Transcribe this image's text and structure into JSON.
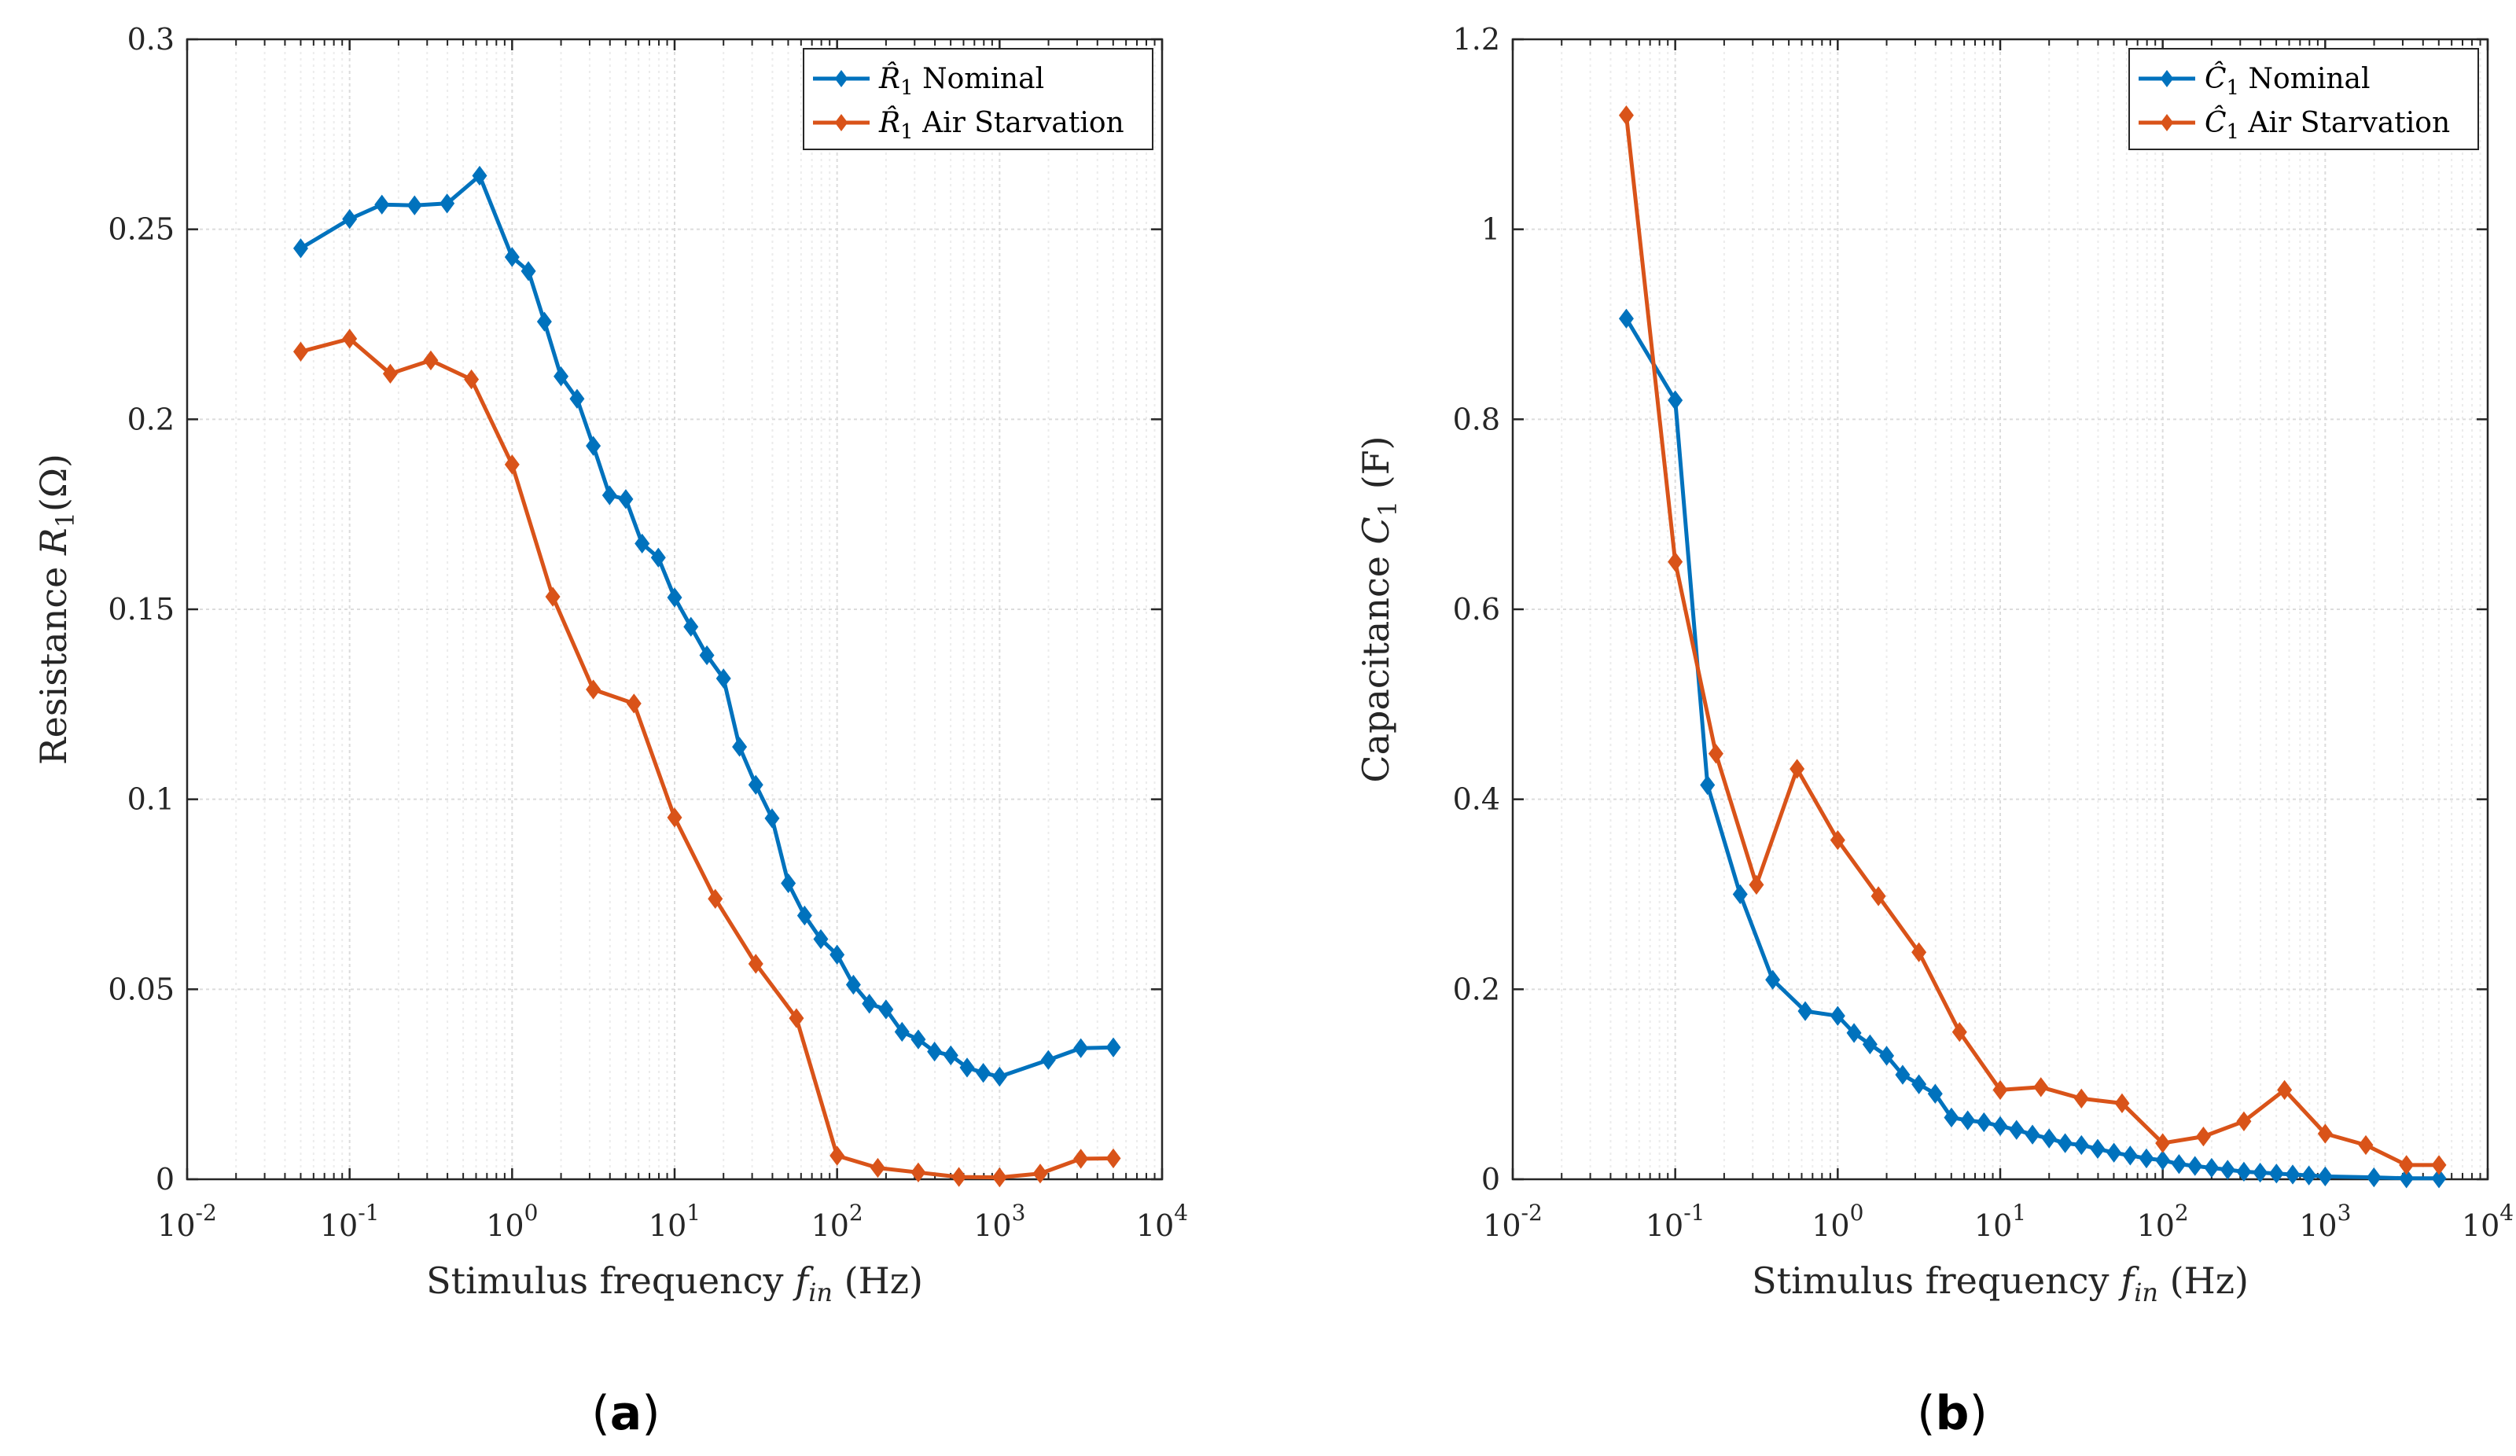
{
  "panels": [
    {
      "label_open": "(",
      "label_letter": "a",
      "label_close": ")"
    },
    {
      "label_open": "(",
      "label_letter": "b",
      "label_close": ")"
    }
  ],
  "chart_data": [
    {
      "type": "line",
      "x_scale": "log",
      "xlim": [
        0.01,
        10000
      ],
      "ylim": [
        0,
        0.3
      ],
      "xlabel": "Stimulus frequency f_in (Hz)",
      "xlabel_main": "Stimulus frequency ",
      "xlabel_var": "f",
      "xlabel_sub": "in",
      "xlabel_unit": " (Hz)",
      "ylabel": "Resistance R1(Ω)",
      "ylabel_main": "Resistance ",
      "ylabel_var": "R",
      "ylabel_sub": "1",
      "ylabel_unit": "(Ω)",
      "x_ticks": [
        {
          "value": 0.01,
          "base": "10",
          "exp": "-2"
        },
        {
          "value": 0.1,
          "base": "10",
          "exp": "-1"
        },
        {
          "value": 1,
          "base": "10",
          "exp": "0"
        },
        {
          "value": 10,
          "base": "10",
          "exp": "1"
        },
        {
          "value": 100,
          "base": "10",
          "exp": "2"
        },
        {
          "value": 1000,
          "base": "10",
          "exp": "3"
        },
        {
          "value": 10000,
          "base": "10",
          "exp": "4"
        }
      ],
      "y_ticks": [
        {
          "value": 0,
          "label": "0"
        },
        {
          "value": 0.05,
          "label": "0.05"
        },
        {
          "value": 0.1,
          "label": "0.1"
        },
        {
          "value": 0.15,
          "label": "0.15"
        },
        {
          "value": 0.2,
          "label": "0.2"
        },
        {
          "value": 0.25,
          "label": "0.25"
        },
        {
          "value": 0.3,
          "label": "0.3"
        }
      ],
      "grid": true,
      "legend_position": "top-right",
      "series": [
        {
          "name": "R̂1 Nominal",
          "legend_var": "R̂",
          "legend_sub": "1",
          "legend_rest": " Nominal",
          "color": "#0072BD",
          "x": [
            0.05,
            0.1,
            0.158,
            0.251,
            0.398,
            0.631,
            1.0,
            1.26,
            1.58,
            2.0,
            2.51,
            3.16,
            3.98,
            5.01,
            6.31,
            7.94,
            10.0,
            12.6,
            15.8,
            20.0,
            25.1,
            31.6,
            39.8,
            50.1,
            63.1,
            79.4,
            100,
            126,
            158,
            200,
            251,
            316,
            398,
            501,
            631,
            794,
            1000,
            1995,
            3162,
            5012
          ],
          "y": [
            0.245,
            0.2527,
            0.2565,
            0.2563,
            0.2568,
            0.2641,
            0.2427,
            0.239,
            0.2257,
            0.2113,
            0.2054,
            0.193,
            0.18,
            0.179,
            0.1673,
            0.1636,
            0.1531,
            0.1454,
            0.1379,
            0.1318,
            0.1138,
            0.1038,
            0.095,
            0.0779,
            0.0694,
            0.0632,
            0.0591,
            0.0512,
            0.0462,
            0.0447,
            0.0388,
            0.0368,
            0.0336,
            0.0326,
            0.0294,
            0.028,
            0.027,
            0.0314,
            0.0345,
            0.0347
          ]
        },
        {
          "name": "R̂1 Air Starvation",
          "legend_var": "R̂",
          "legend_sub": "1",
          "legend_rest": " Air Starvation",
          "color": "#D95319",
          "x": [
            0.05,
            0.1,
            0.178,
            0.316,
            0.562,
            1.0,
            1.78,
            3.16,
            5.62,
            10.0,
            17.8,
            31.6,
            56.2,
            100,
            178,
            316,
            562,
            1000,
            1778,
            3162,
            5012
          ],
          "y": [
            0.2178,
            0.2212,
            0.212,
            0.2155,
            0.2105,
            0.1881,
            0.1533,
            0.1289,
            0.1252,
            0.0952,
            0.0738,
            0.0567,
            0.0424,
            0.0062,
            0.003,
            0.0018,
            0.0006,
            0.0005,
            0.0015,
            0.0054,
            0.0055
          ]
        }
      ]
    },
    {
      "type": "line",
      "x_scale": "log",
      "xlim": [
        0.01,
        10000
      ],
      "ylim": [
        0,
        1.2
      ],
      "xlabel": "Stimulus frequency f_in (Hz)",
      "xlabel_main": "Stimulus frequency ",
      "xlabel_var": "f",
      "xlabel_sub": "in",
      "xlabel_unit": " (Hz)",
      "ylabel": "Capacitance C1 (F)",
      "ylabel_main": "Capacitance ",
      "ylabel_var": "C",
      "ylabel_sub": "1",
      "ylabel_unit": " (F)",
      "x_ticks": [
        {
          "value": 0.01,
          "base": "10",
          "exp": "-2"
        },
        {
          "value": 0.1,
          "base": "10",
          "exp": "-1"
        },
        {
          "value": 1,
          "base": "10",
          "exp": "0"
        },
        {
          "value": 10,
          "base": "10",
          "exp": "1"
        },
        {
          "value": 100,
          "base": "10",
          "exp": "2"
        },
        {
          "value": 1000,
          "base": "10",
          "exp": "3"
        },
        {
          "value": 10000,
          "base": "10",
          "exp": "4"
        }
      ],
      "y_ticks": [
        {
          "value": 0,
          "label": "0"
        },
        {
          "value": 0.2,
          "label": "0.2"
        },
        {
          "value": 0.4,
          "label": "0.4"
        },
        {
          "value": 0.6,
          "label": "0.6"
        },
        {
          "value": 0.8,
          "label": "0.8"
        },
        {
          "value": 1.0,
          "label": "1"
        },
        {
          "value": 1.2,
          "label": "1.2"
        }
      ],
      "grid": true,
      "legend_position": "top-right",
      "series": [
        {
          "name": "Ĉ1 Nominal",
          "legend_var": "Ĉ",
          "legend_sub": "1",
          "legend_rest": " Nominal",
          "color": "#0072BD",
          "x": [
            0.05,
            0.1,
            0.158,
            0.251,
            0.398,
            0.631,
            1.0,
            1.26,
            1.58,
            2.0,
            2.51,
            3.16,
            3.98,
            5.01,
            6.31,
            7.94,
            10.0,
            12.6,
            15.8,
            20.0,
            25.1,
            31.6,
            39.8,
            50.1,
            63.1,
            79.4,
            100,
            126,
            158,
            200,
            251,
            316,
            398,
            501,
            631,
            794,
            1000,
            1995,
            3162,
            5012
          ],
          "y": [
            0.906,
            0.82,
            0.415,
            0.3,
            0.21,
            0.177,
            0.172,
            0.154,
            0.142,
            0.13,
            0.11,
            0.1,
            0.09,
            0.065,
            0.062,
            0.06,
            0.056,
            0.052,
            0.047,
            0.043,
            0.038,
            0.036,
            0.032,
            0.028,
            0.025,
            0.022,
            0.02,
            0.016,
            0.014,
            0.012,
            0.01,
            0.008,
            0.007,
            0.006,
            0.005,
            0.004,
            0.003,
            0.002,
            0.001,
            0.001
          ]
        },
        {
          "name": "Ĉ1 Air Starvation",
          "legend_var": "Ĉ",
          "legend_sub": "1",
          "legend_rest": " Air Starvation",
          "color": "#D95319",
          "x": [
            0.05,
            0.1,
            0.178,
            0.316,
            0.562,
            1.0,
            1.78,
            3.16,
            5.62,
            10.0,
            17.8,
            31.6,
            56.2,
            100,
            178,
            316,
            562,
            1000,
            1778,
            3162,
            5012
          ],
          "y": [
            1.12,
            0.65,
            0.448,
            0.31,
            0.432,
            0.357,
            0.298,
            0.239,
            0.155,
            0.094,
            0.097,
            0.085,
            0.08,
            0.038,
            0.045,
            0.061,
            0.094,
            0.048,
            0.036,
            0.015,
            0.015
          ]
        }
      ]
    }
  ]
}
